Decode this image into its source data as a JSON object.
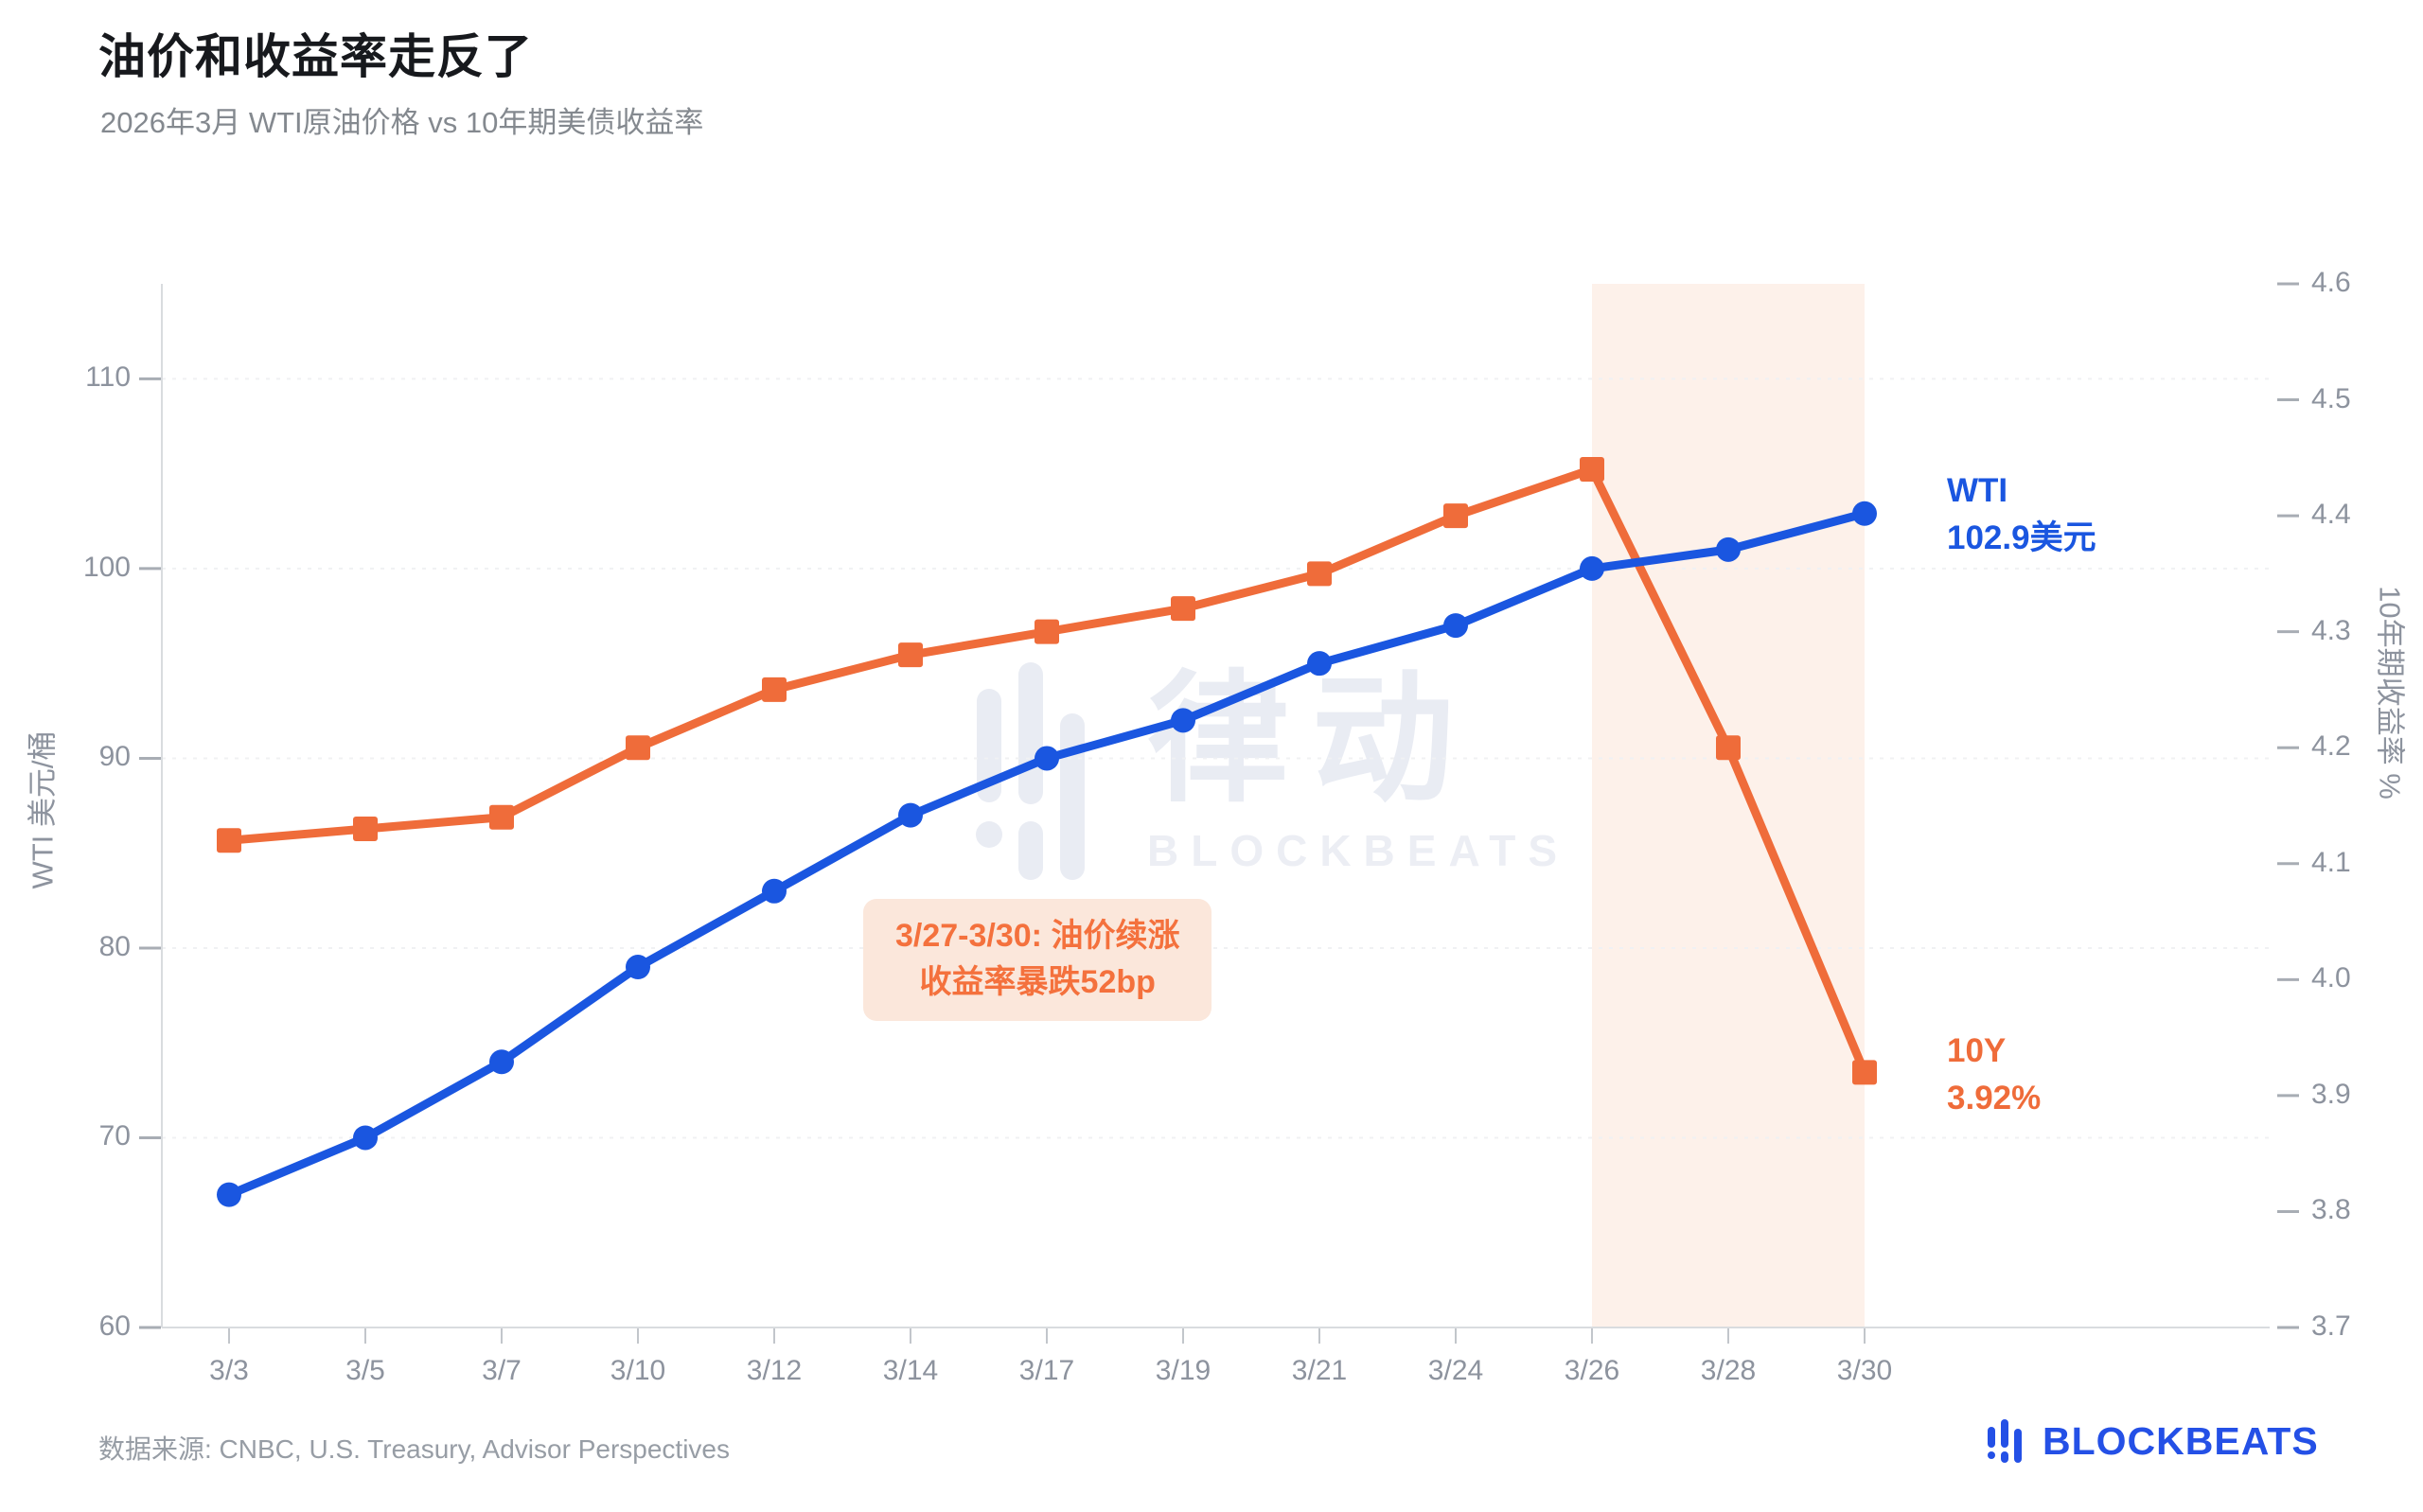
{
  "page": {
    "title": "油价和收益率走反了",
    "subtitle": "2026年3月 WTI原油价格 vs 10年期美债收益率",
    "source": "数据来源: CNBC, U.S. Treasury, Advisor Perspectives"
  },
  "chart_data": {
    "type": "line",
    "title": "油价和收益率走反了",
    "subtitle": "2026年3月 WTI原油价格 vs 10年期美债收益率",
    "categories": [
      "3/3",
      "3/5",
      "3/7",
      "3/10",
      "3/12",
      "3/14",
      "3/17",
      "3/19",
      "3/21",
      "3/24",
      "3/26",
      "3/28",
      "3/30"
    ],
    "series": [
      {
        "name": "WTI",
        "axis": "left",
        "marker": "circle",
        "color": "#1a56e0",
        "values": [
          67,
          70,
          74,
          79,
          83,
          87,
          90,
          92,
          95,
          97,
          100,
          101,
          102.9
        ]
      },
      {
        "name": "10Y",
        "axis": "right",
        "marker": "square",
        "color": "#ef6c3a",
        "values": [
          4.12,
          4.13,
          4.14,
          4.2,
          4.25,
          4.28,
          4.3,
          4.32,
          4.35,
          4.4,
          4.44,
          4.2,
          3.92
        ]
      }
    ],
    "left_axis": {
      "title": "WTI 美元/桶",
      "min": 60,
      "max": 115,
      "ticks": [
        60,
        70,
        80,
        90,
        100,
        110
      ]
    },
    "right_axis": {
      "title": "10年期收益率 %",
      "min": 3.7,
      "max": 4.6,
      "ticks": [
        3.7,
        3.8,
        3.9,
        4.0,
        4.1,
        4.2,
        4.3,
        4.4,
        4.5,
        4.6
      ]
    },
    "grid": "horizontal-dashed",
    "legend_position": "inline-end-labels",
    "highlight_region": {
      "from": "3/26",
      "to": "3/30",
      "from_index": 10,
      "to_index": 12
    }
  },
  "annotations": {
    "callout": {
      "line1": "3/27-3/30: 油价续涨",
      "line2": "收益率暴跌52bp"
    },
    "wti_label": {
      "name": "WTI",
      "value": "102.9美元"
    },
    "y10_label": {
      "name": "10Y",
      "value": "3.92%"
    }
  },
  "watermark": {
    "cn": "律动",
    "en": "BLOCKBEATS"
  },
  "logo": {
    "text": "BLOCKBEATS"
  },
  "colors": {
    "wti_blue": "#1a56e0",
    "yield_orange": "#ef6c3a",
    "highlight_bg": "#fdf1ea",
    "callout_bg": "#fbe7db",
    "callout_text": "#f4713d",
    "logo_blue": "#2450e6",
    "watermark_gray": "#e9ecf3",
    "axis_text": "#8d939e",
    "grid_line": "#f0f1f3",
    "axis_line": "#d9dcdf"
  }
}
